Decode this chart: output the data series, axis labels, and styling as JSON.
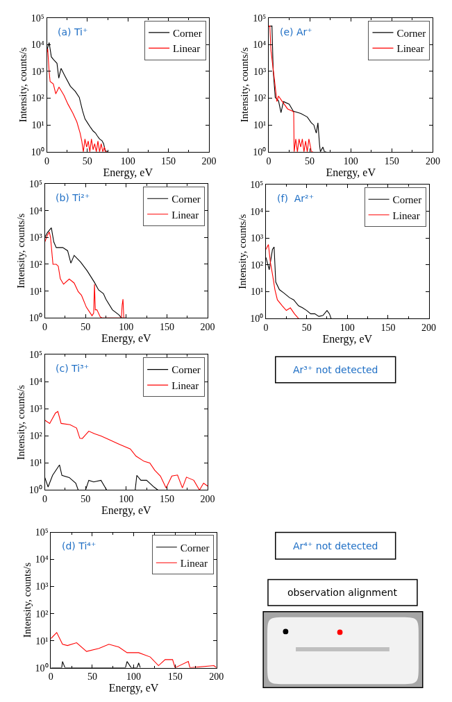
{
  "chart_data": [
    {
      "type": "line",
      "title": "(a) Ti⁺",
      "xlabel": "Energy, eV",
      "ylabel": "Intensity, counts/s",
      "log": "y",
      "legend": "top right",
      "xlim": [
        0,
        200
      ],
      "xticks": [
        0,
        {
          "value": 25,
          "label": null
        },
        50,
        {
          "value": 75,
          "label": null
        },
        100,
        {
          "value": 125,
          "label": null
        },
        150,
        {
          "value": 175,
          "label": null
        },
        200
      ],
      "ylim": [
        1,
        100000
      ],
      "yticks": [
        {
          "value": 1,
          "label": "10⁰"
        },
        {
          "value": 10,
          "label": "10¹"
        },
        {
          "value": 100,
          "label": "10²"
        },
        {
          "value": 1000,
          "label": "10³"
        },
        {
          "value": 10000,
          "label": "10⁴"
        },
        {
          "value": 100000,
          "label": "10⁵"
        }
      ],
      "series": [
        {
          "name": "Corner",
          "color": "#000000",
          "x": [
            0,
            2.8,
            5.5,
            8,
            12.5,
            14.7,
            17.5,
            22,
            29,
            35,
            40,
            44,
            47,
            51,
            54,
            57,
            60,
            62,
            65,
            68,
            70,
            72,
            75
          ],
          "values": [
            6000,
            12000,
            3500,
            2800,
            2000,
            560,
            1300,
            700,
            280,
            180,
            107,
            34,
            17,
            11,
            8,
            6,
            5,
            4,
            3,
            2.6,
            2,
            1.1,
            1
          ]
        },
        {
          "name": "Linear",
          "color": "#ff0000",
          "x": [
            0,
            1,
            2.8,
            4,
            8,
            11,
            15,
            21,
            26,
            32,
            37,
            41,
            43,
            45,
            47,
            49,
            51,
            53,
            55,
            57,
            59,
            61,
            63,
            65,
            67,
            69,
            71,
            72,
            74
          ],
          "values": [
            5100,
            7000,
            1000,
            420,
            340,
            145,
            260,
            130,
            60,
            28,
            13,
            5,
            2.6,
            1,
            3,
            1.5,
            2.5,
            1,
            3,
            1.2,
            2,
            1,
            2.5,
            1,
            2,
            1,
            1.5,
            1,
            1
          ]
        }
      ]
    },
    {
      "type": "line",
      "title": "(e) Ar⁺",
      "xlabel": "Energy, eV",
      "ylabel": "Intensity, counts/s",
      "log": "y",
      "legend": "top right",
      "xlim": [
        0,
        200
      ],
      "xticks": [
        0,
        {
          "value": 25,
          "label": null
        },
        50,
        {
          "value": 75,
          "label": null
        },
        100,
        {
          "value": 125,
          "label": null
        },
        150,
        {
          "value": 175,
          "label": null
        },
        200
      ],
      "ylim": [
        1,
        100000
      ],
      "yticks": [
        {
          "value": 1,
          "label": "10⁰"
        },
        {
          "value": 10,
          "label": "10¹"
        },
        {
          "value": 100,
          "label": "10²"
        },
        {
          "value": 1000,
          "label": "10³"
        },
        {
          "value": 10000,
          "label": "10⁴"
        },
        {
          "value": 100000,
          "label": "10⁵"
        }
      ],
      "series": [
        {
          "name": "Corner",
          "color": "#000000",
          "x": [
            0,
            4,
            5.5,
            8,
            12,
            15,
            18,
            25,
            30,
            39,
            47,
            52,
            55,
            58,
            60,
            62,
            63,
            66,
            68,
            70
          ],
          "values": [
            48000,
            50000,
            1100,
            107,
            80,
            29,
            75,
            60,
            33,
            27,
            20,
            12,
            10,
            5,
            12,
            1.8,
            1,
            1.5,
            1,
            1
          ]
        },
        {
          "name": "Linear",
          "color": "#ff0000",
          "x": [
            0,
            1.4,
            2.8,
            7,
            10,
            12,
            16,
            23,
            29,
            30.5,
            31,
            33,
            35,
            37,
            39,
            41,
            43,
            45,
            47,
            49,
            51,
            52,
            54
          ],
          "values": [
            48000,
            50000,
            6000,
            500,
            75,
            120,
            80,
            40,
            33,
            30,
            1,
            3,
            1,
            3,
            1.5,
            3,
            1,
            2.5,
            1,
            3,
            1.5,
            1,
            1
          ]
        }
      ]
    },
    {
      "type": "line",
      "title": "(b) Ti²⁺",
      "xlabel": "Energy, eV",
      "ylabel": "Intensity, counts/s",
      "log": "y",
      "legend": "top right",
      "xlim": [
        0,
        200
      ],
      "xticks": [
        0,
        {
          "value": 25,
          "label": null
        },
        50,
        {
          "value": 75,
          "label": null
        },
        100,
        {
          "value": 125,
          "label": null
        },
        150,
        {
          "value": 175,
          "label": null
        },
        200
      ],
      "ylim": [
        1,
        100000
      ],
      "yticks": [
        {
          "value": 1,
          "label": "10⁰"
        },
        {
          "value": 10,
          "label": "10¹"
        },
        {
          "value": 100,
          "label": "10²"
        },
        {
          "value": 1000,
          "label": "10³"
        },
        {
          "value": 10000,
          "label": "10⁴"
        },
        {
          "value": 100000,
          "label": "10⁵"
        }
      ],
      "series": [
        {
          "name": "Corner",
          "color": "#000000",
          "x": [
            0,
            3,
            8,
            11,
            14,
            22,
            28,
            32,
            36,
            44,
            52,
            61,
            66,
            72,
            75,
            83,
            91,
            94,
            96
          ],
          "values": [
            1000,
            1500,
            2300,
            680,
            420,
            420,
            320,
            110,
            215,
            120,
            57,
            21,
            11,
            8,
            5,
            2,
            1.3,
            1,
            1
          ]
        },
        {
          "name": "Linear",
          "color": "#ff0000",
          "x": [
            0,
            3,
            5.5,
            7,
            10,
            14,
            16.5,
            19,
            23,
            30,
            36,
            41,
            45,
            47,
            51,
            58,
            60,
            61,
            62,
            64,
            68,
            70,
            94,
            95,
            96,
            97,
            100
          ],
          "values": [
            680,
            1200,
            1600,
            1000,
            100,
            100,
            85,
            29,
            18,
            28,
            20,
            9.5,
            7,
            5,
            2.5,
            1.2,
            1.5,
            18,
            2,
            2,
            1.1,
            1,
            1,
            3,
            5,
            1,
            1
          ]
        }
      ]
    },
    {
      "type": "line",
      "title": "(f)  Ar²⁺",
      "xlabel": "Energy, eV",
      "ylabel": "Intensity, counts/s",
      "log": "y",
      "legend": "top right",
      "xlim": [
        0,
        200
      ],
      "xticks": [
        0,
        {
          "value": 25,
          "label": null
        },
        50,
        {
          "value": 75,
          "label": null
        },
        100,
        {
          "value": 125,
          "label": null
        },
        150,
        {
          "value": 175,
          "label": null
        },
        200
      ],
      "ylim": [
        1,
        100000
      ],
      "yticks": [
        {
          "value": 1,
          "label": "10⁰"
        },
        {
          "value": 10,
          "label": "10¹"
        },
        {
          "value": 100,
          "label": "10²"
        },
        {
          "value": 1000,
          "label": "10³"
        },
        {
          "value": 10000,
          "label": "10⁴"
        },
        {
          "value": 100000,
          "label": "10⁵"
        }
      ],
      "series": [
        {
          "name": "Corner",
          "color": "#000000",
          "x": [
            0,
            4,
            8,
            10,
            12,
            16.5,
            22,
            29,
            34,
            40,
            45,
            50,
            55,
            60,
            65,
            70,
            75,
            78,
            80
          ],
          "values": [
            190,
            66,
            380,
            470,
            23,
            12,
            9,
            6,
            5,
            3,
            2.5,
            2,
            1.5,
            1.5,
            1.2,
            1.3,
            2,
            1.5,
            1
          ]
        },
        {
          "name": "Linear",
          "color": "#ff0000",
          "x": [
            0,
            3,
            5.5,
            8,
            11,
            14,
            20,
            25,
            30,
            35,
            40
          ],
          "values": [
            380,
            580,
            120,
            45,
            12,
            5,
            3,
            2,
            2.5,
            1.5,
            1
          ]
        }
      ]
    },
    {
      "type": "line",
      "title": "(c) Ti³⁺",
      "xlabel": "Energy, eV",
      "ylabel": "Intensity, counts/s",
      "log": "y",
      "legend": "top right",
      "xlim": [
        0,
        200
      ],
      "xticks": [
        0,
        {
          "value": 25,
          "label": null
        },
        50,
        {
          "value": 75,
          "label": null
        },
        100,
        {
          "value": 125,
          "label": null
        },
        150,
        {
          "value": 175,
          "label": null
        },
        200
      ],
      "ylim": [
        1,
        100000
      ],
      "yticks": [
        {
          "value": 1,
          "label": "10⁰"
        },
        {
          "value": 10,
          "label": "10¹"
        },
        {
          "value": 100,
          "label": "10²"
        },
        {
          "value": 1000,
          "label": "10³"
        },
        {
          "value": 10000,
          "label": "10⁴"
        },
        {
          "value": 100000,
          "label": "10⁵"
        }
      ],
      "series": [
        {
          "name": "Corner",
          "color": "#000000",
          "x": [
            0,
            4,
            9.5,
            18,
            21,
            30,
            38,
            41,
            50,
            54,
            60,
            69,
            76,
            111,
            113,
            118,
            125,
            134,
            139
          ],
          "values": [
            2.9,
            1.3,
            3.5,
            8.5,
            3.5,
            2.9,
            1.8,
            1,
            1,
            2.3,
            2,
            2.3,
            1,
            1,
            3.5,
            2.3,
            2.3,
            1.3,
            1
          ]
        },
        {
          "name": "Linear",
          "color": "#ff0000",
          "x": [
            0,
            6,
            13,
            16,
            20,
            31,
            39,
            43,
            46,
            54,
            61,
            69,
            78,
            91,
            105,
            112,
            122,
            129,
            135,
            142,
            149,
            156,
            163,
            169,
            174,
            183,
            190,
            195,
            200
          ],
          "values": [
            380,
            290,
            700,
            800,
            290,
            260,
            195,
            82,
            80,
            150,
            120,
            100,
            75,
            50,
            33,
            18,
            11.5,
            10,
            5.4,
            3.3,
            1.2,
            3.3,
            3.6,
            1.2,
            3,
            2.3,
            1,
            1.8,
            1.4
          ]
        }
      ]
    },
    {
      "type": "other",
      "title": "Ar³⁺ not detected"
    },
    {
      "type": "line",
      "title": "(d) Ti⁴⁺",
      "xlabel": "Energy, eV",
      "ylabel": "Intensity, counts/s",
      "log": "y",
      "legend": "top right",
      "xlim": [
        0,
        200
      ],
      "xticks": [
        0,
        {
          "value": 25,
          "label": null
        },
        50,
        {
          "value": 75,
          "label": null
        },
        100,
        {
          "value": 125,
          "label": null
        },
        150,
        {
          "value": 175,
          "label": null
        },
        200
      ],
      "ylim": [
        1,
        100000
      ],
      "yticks": [
        {
          "value": 1,
          "label": "10⁰"
        },
        {
          "value": 10,
          "label": "10¹"
        },
        {
          "value": 100,
          "label": "10²"
        },
        {
          "value": 1000,
          "label": "10³"
        },
        {
          "value": 10000,
          "label": "10⁴"
        },
        {
          "value": 100000,
          "label": "10⁵"
        }
      ],
      "series": [
        {
          "name": "Corner",
          "color": "#000000",
          "x": [
            0,
            13,
            14,
            17,
            90,
            92,
            97,
            104,
            106,
            108
          ],
          "values": [
            1,
            1,
            1.7,
            1,
            1,
            1.7,
            1,
            1,
            1.5,
            1
          ]
        },
        {
          "name": "Linear",
          "color": "#ff0000",
          "x": [
            0,
            7,
            14,
            20,
            31,
            43,
            58,
            70,
            82,
            92,
            106,
            120,
            130,
            138,
            147,
            150,
            166,
            168,
            197,
            200
          ],
          "values": [
            12,
            20,
            7.4,
            6.6,
            8.4,
            4,
            5.2,
            7.4,
            5.8,
            3.6,
            3.6,
            2.5,
            1.2,
            2,
            2,
            1,
            1.7,
            1,
            1.2,
            1
          ]
        }
      ]
    },
    {
      "type": "other",
      "title": "Ar⁴⁺ not detected"
    },
    {
      "type": "other",
      "title": "observation alignment"
    }
  ]
}
